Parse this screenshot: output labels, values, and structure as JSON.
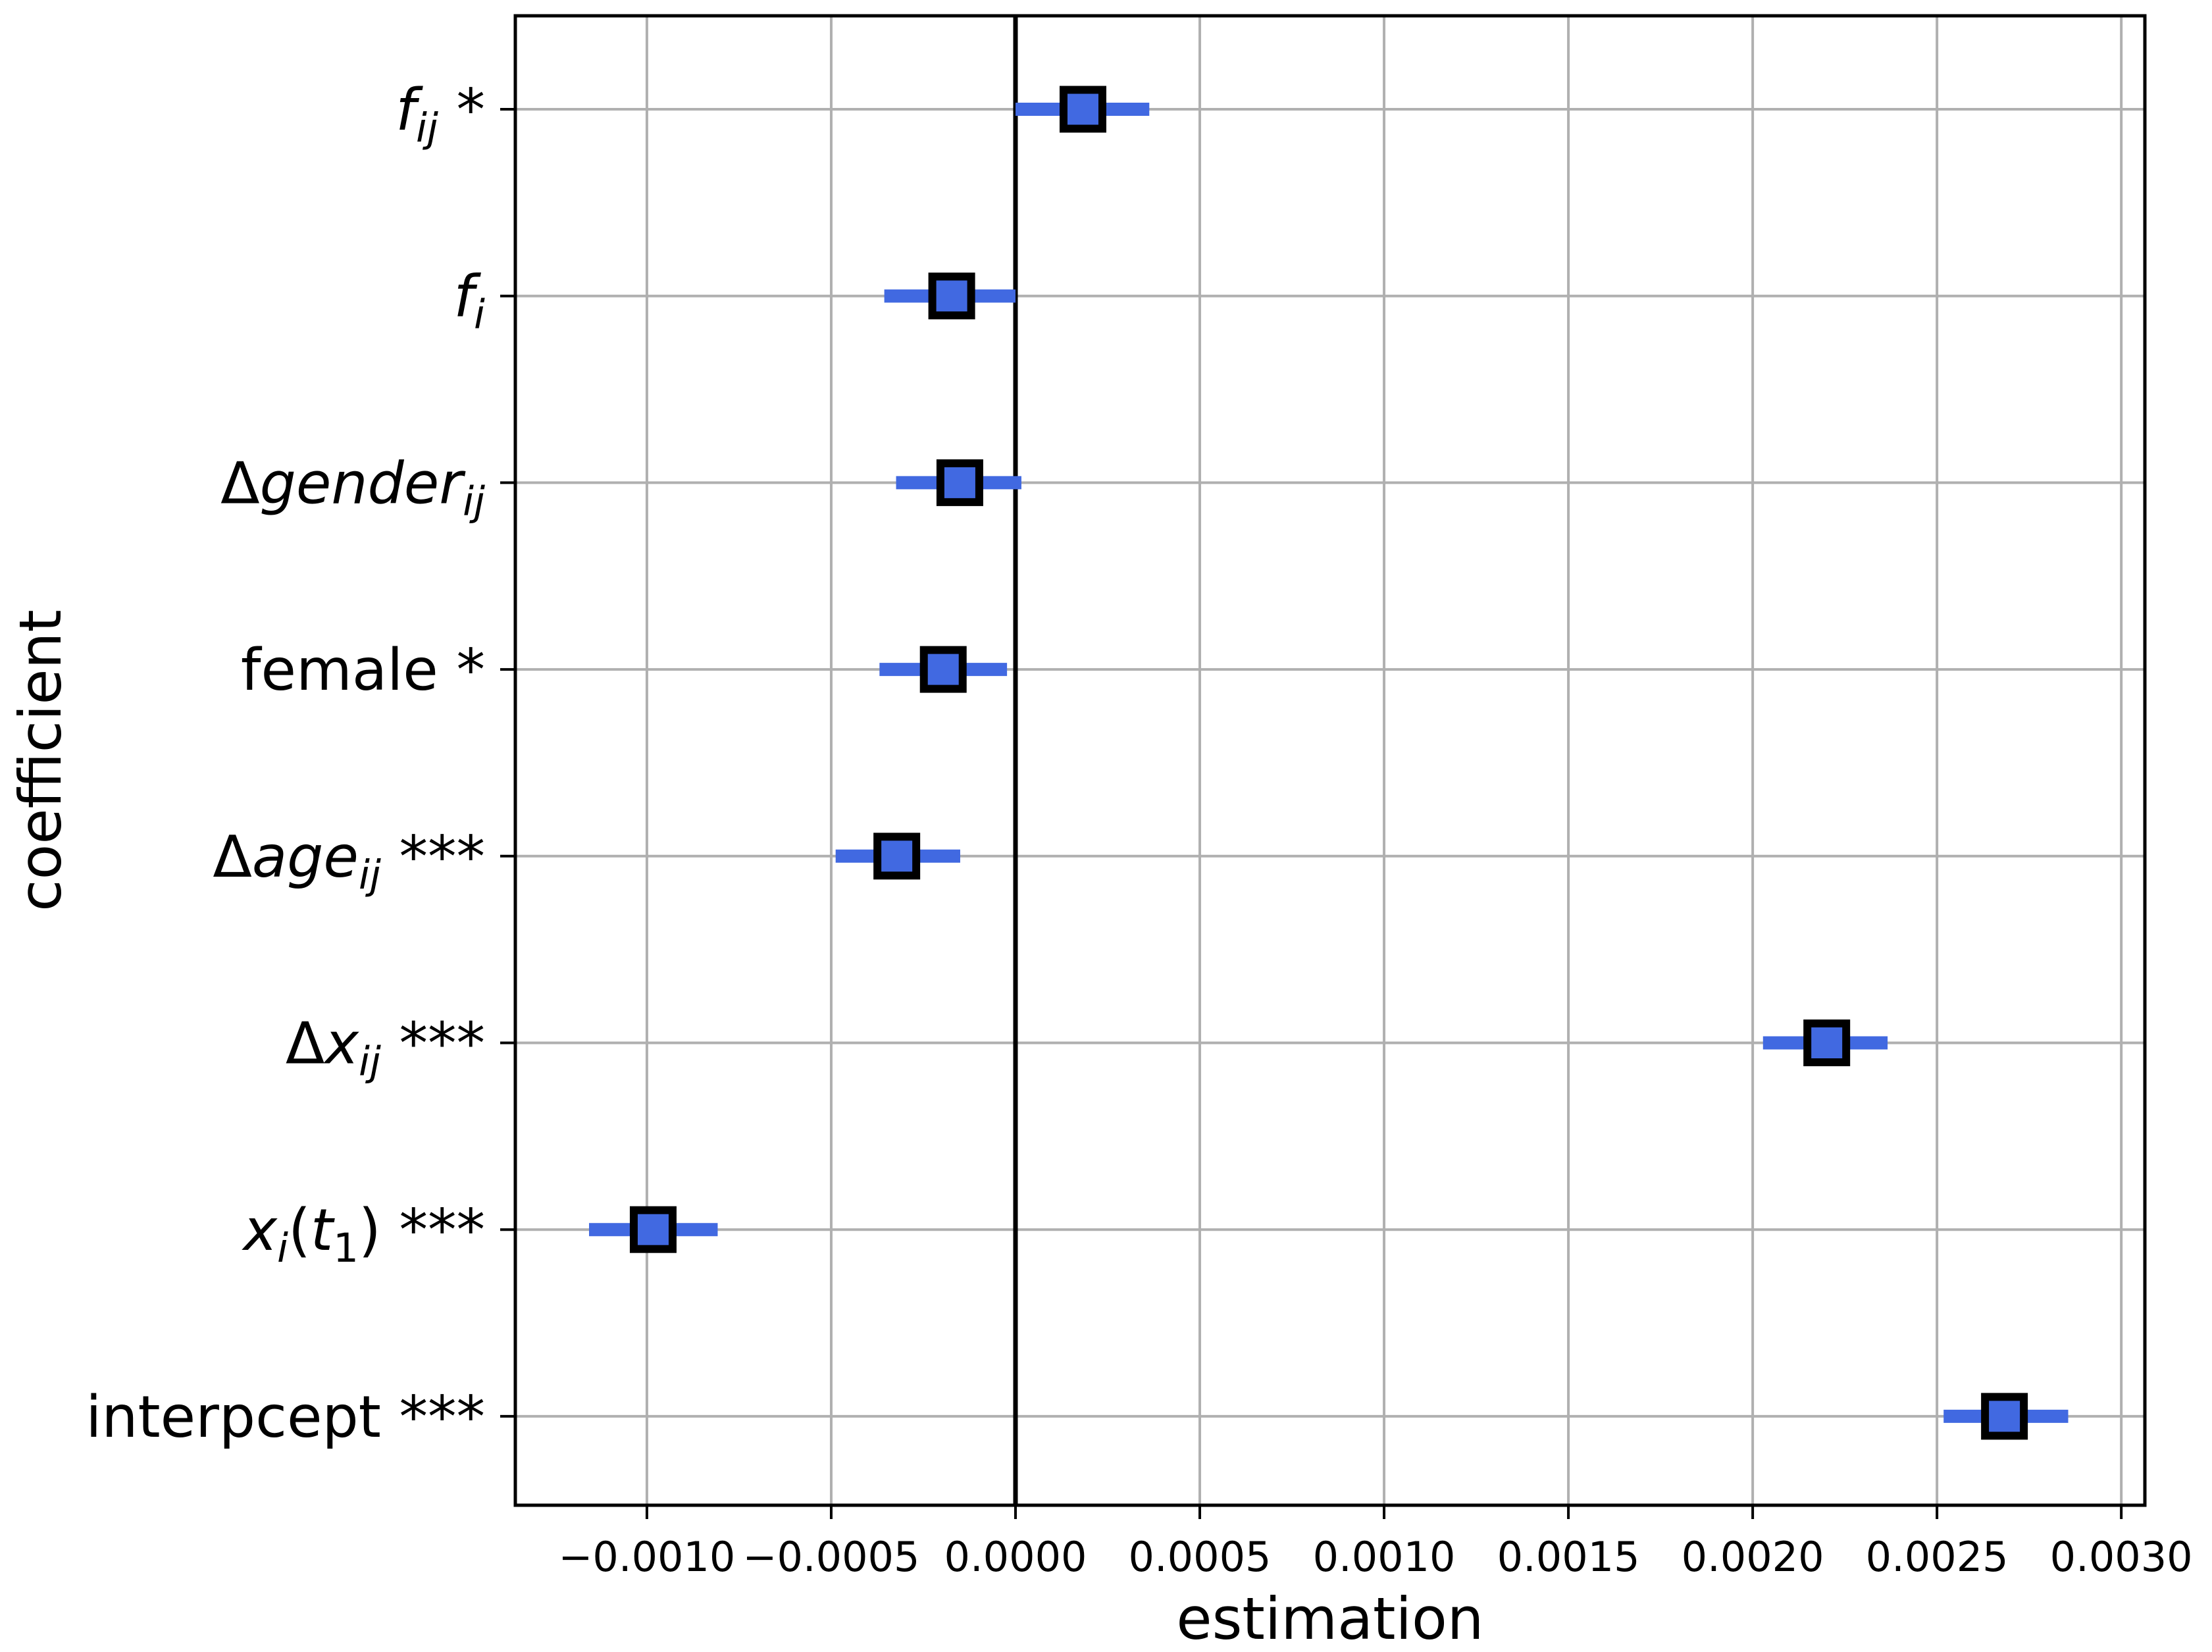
{
  "chart_data": {
    "type": "scatter",
    "subtype": "coefficient-plot-with-error-bars",
    "title": "",
    "xlabel": "estimation",
    "ylabel": "coefficient",
    "xlim": [
      -0.001357,
      0.003064
    ],
    "x_ticks": [
      -0.001,
      -0.0005,
      0.0,
      0.0005,
      0.001,
      0.0015,
      0.002,
      0.0025,
      0.003
    ],
    "x_tick_labels": [
      "−0.0010",
      "−0.0005",
      "0.0000",
      "0.0005",
      "0.0010",
      "0.0015",
      "0.0020",
      "0.0025",
      "0.0030"
    ],
    "grid": true,
    "reference_line": {
      "x": 0.0,
      "color": "#000000"
    },
    "marker": {
      "shape": "square",
      "fill": "#4169E1",
      "edge": "#000000"
    },
    "errorbar_color": "#4169E1",
    "categories": [
      {
        "label": "f_ij *",
        "parts": [
          {
            "t": "f",
            "i": true
          },
          {
            "t": "ij",
            "i": true,
            "sub": true
          },
          {
            "t": " *"
          }
        ]
      },
      {
        "label": "f_i",
        "parts": [
          {
            "t": "f",
            "i": true
          },
          {
            "t": "i",
            "i": true,
            "sub": true
          }
        ]
      },
      {
        "label": "Δgender_ij",
        "parts": [
          {
            "t": "Δ"
          },
          {
            "t": "gender",
            "i": true
          },
          {
            "t": "ij",
            "i": true,
            "sub": true
          }
        ]
      },
      {
        "label": "female *",
        "parts": [
          {
            "t": "female *"
          }
        ]
      },
      {
        "label": "Δage_ij ***",
        "parts": [
          {
            "t": "Δ"
          },
          {
            "t": "age",
            "i": true
          },
          {
            "t": "ij",
            "i": true,
            "sub": true
          },
          {
            "t": " ***"
          }
        ]
      },
      {
        "label": "Δx_ij ***",
        "parts": [
          {
            "t": "Δ"
          },
          {
            "t": "x",
            "i": true
          },
          {
            "t": "ij",
            "i": true,
            "sub": true
          },
          {
            "t": " ***"
          }
        ]
      },
      {
        "label": "x_i(t_1) ***",
        "parts": [
          {
            "t": "x",
            "i": true
          },
          {
            "t": "i",
            "i": true,
            "sub": true
          },
          {
            "t": "("
          },
          {
            "t": "t",
            "i": true
          },
          {
            "t": "1",
            "sub": true
          },
          {
            "t": ") ***"
          }
        ]
      },
      {
        "label": "interpcept ***",
        "parts": [
          {
            "t": "interpcept ***"
          }
        ]
      }
    ],
    "series": [
      {
        "name": "estimate",
        "values": [
          0.000183,
          -0.000173,
          -0.000151,
          -0.000196,
          -0.000322,
          0.002201,
          -0.000983,
          0.002683
        ],
        "ci_low": [
          0.0,
          -0.000356,
          -0.000324,
          -0.000369,
          -0.000488,
          0.002028,
          -0.001157,
          0.002518
        ],
        "ci_high": [
          0.000363,
          0.0,
          1.6e-05,
          -2.3e-05,
          -0.00015,
          0.002366,
          -0.000808,
          0.002856
        ]
      }
    ]
  }
}
